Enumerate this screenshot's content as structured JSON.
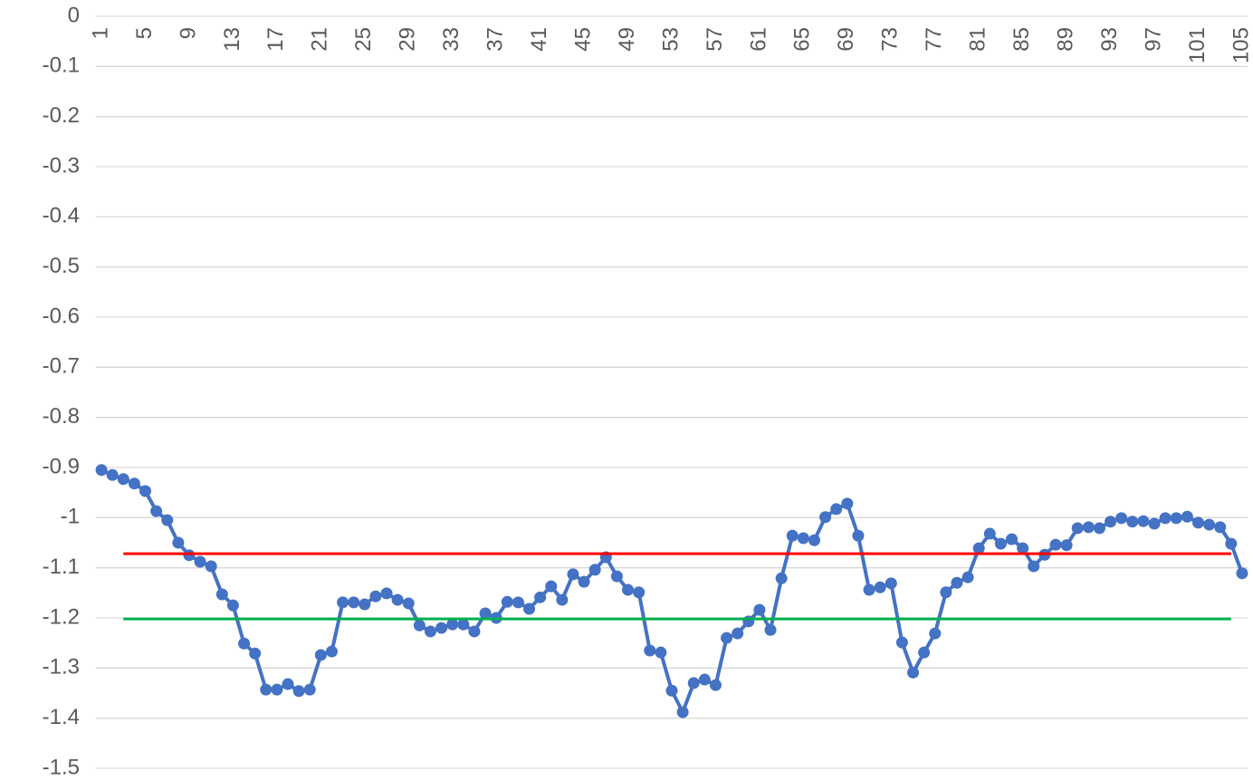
{
  "chart_data": {
    "type": "line",
    "categories": [
      1,
      null,
      null,
      null,
      5,
      null,
      null,
      null,
      9,
      null,
      null,
      null,
      13,
      null,
      null,
      null,
      17,
      null,
      null,
      null,
      21,
      null,
      null,
      null,
      25,
      null,
      null,
      null,
      29,
      null,
      null,
      null,
      33,
      null,
      null,
      null,
      37,
      null,
      null,
      null,
      41,
      null,
      null,
      null,
      45,
      null,
      null,
      null,
      49,
      null,
      null,
      null,
      53,
      null,
      null,
      null,
      57,
      null,
      null,
      null,
      61,
      null,
      null,
      null,
      65,
      null,
      null,
      null,
      69,
      null,
      null,
      null,
      73,
      null,
      null,
      null,
      77,
      null,
      null,
      null,
      81,
      null,
      null,
      null,
      85,
      null,
      null,
      null,
      89,
      null,
      null,
      null,
      93,
      null,
      null,
      null,
      97,
      null,
      null,
      null,
      101,
      null,
      null,
      null,
      105
    ],
    "series": [
      {
        "color": "#4472c4",
        "marker": true,
        "values": [
          -0.905,
          -0.915,
          -0.923,
          -0.932,
          -0.947,
          -0.987,
          -1.005,
          -1.05,
          -1.075,
          -1.088,
          -1.097,
          -1.153,
          -1.175,
          -1.251,
          -1.271,
          -1.343,
          -1.343,
          -1.332,
          -1.346,
          -1.343,
          -1.274,
          -1.267,
          -1.169,
          -1.169,
          -1.173,
          -1.157,
          -1.151,
          -1.164,
          -1.171,
          -1.215,
          -1.227,
          -1.22,
          -1.213,
          -1.213,
          -1.227,
          -1.191,
          -1.2,
          -1.168,
          -1.169,
          -1.182,
          -1.159,
          -1.137,
          -1.164,
          -1.113,
          -1.128,
          -1.104,
          -1.079,
          -1.117,
          -1.144,
          -1.149,
          -1.265,
          -1.269,
          -1.345,
          -1.388,
          -1.33,
          -1.323,
          -1.334,
          -1.24,
          -1.231,
          -1.207,
          -1.184,
          -1.224,
          -1.121,
          -1.036,
          -1.041,
          -1.045,
          -0.999,
          -0.983,
          -0.972,
          -1.036,
          -1.144,
          -1.139,
          -1.131,
          -1.249,
          -1.309,
          -1.269,
          -1.231,
          -1.149,
          -1.13,
          -1.119,
          -1.061,
          -1.032,
          -1.052,
          -1.043,
          -1.061,
          -1.097,
          -1.074,
          -1.054,
          -1.055,
          -1.021,
          -1.019,
          -1.021,
          -1.008,
          -1.001,
          -1.008,
          -1.007,
          -1.012,
          -1.001,
          -1.001,
          -0.998,
          -1.01,
          -1.014,
          -1.019,
          -1.052,
          -1.111
        ]
      },
      {
        "color": "#ff0000",
        "marker": false,
        "values": [
          null,
          null,
          -1.072,
          -1.072,
          -1.072,
          -1.072,
          -1.072,
          -1.072,
          -1.072,
          -1.072,
          -1.072,
          -1.072,
          -1.072,
          -1.072,
          -1.072,
          -1.072,
          -1.072,
          -1.072,
          -1.072,
          -1.072,
          -1.072,
          -1.072,
          -1.072,
          -1.072,
          -1.072,
          -1.072,
          -1.072,
          -1.072,
          -1.072,
          -1.072,
          -1.072,
          -1.072,
          -1.072,
          -1.072,
          -1.072,
          -1.072,
          -1.072,
          -1.072,
          -1.072,
          -1.072,
          -1.072,
          -1.072,
          -1.072,
          -1.072,
          -1.072,
          -1.072,
          -1.072,
          -1.072,
          -1.072,
          -1.072,
          -1.072,
          -1.072,
          -1.072,
          -1.072,
          -1.072,
          -1.072,
          -1.072,
          -1.072,
          -1.072,
          -1.072,
          -1.072,
          -1.072,
          -1.072,
          -1.072,
          -1.072,
          -1.072,
          -1.072,
          -1.072,
          -1.072,
          -1.072,
          -1.072,
          -1.072,
          -1.072,
          -1.072,
          -1.072,
          -1.072,
          -1.072,
          -1.072,
          -1.072,
          -1.072,
          -1.072,
          -1.072,
          -1.072,
          -1.072,
          -1.072,
          -1.072,
          -1.072,
          -1.072,
          -1.072,
          -1.072,
          -1.072,
          -1.072,
          -1.072,
          -1.072,
          -1.072,
          -1.072,
          -1.072,
          -1.072,
          -1.072,
          -1.072,
          -1.072,
          -1.072,
          -1.072,
          -1.072,
          null
        ]
      },
      {
        "color": "#00b050",
        "marker": false,
        "values": [
          null,
          null,
          -1.202,
          -1.202,
          -1.202,
          -1.202,
          -1.202,
          -1.202,
          -1.202,
          -1.202,
          -1.202,
          -1.202,
          -1.202,
          -1.202,
          -1.202,
          -1.202,
          -1.202,
          -1.202,
          -1.202,
          -1.202,
          -1.202,
          -1.202,
          -1.202,
          -1.202,
          -1.202,
          -1.202,
          -1.202,
          -1.202,
          -1.202,
          -1.202,
          -1.202,
          -1.202,
          -1.202,
          -1.202,
          -1.202,
          -1.202,
          -1.202,
          -1.202,
          -1.202,
          -1.202,
          -1.202,
          -1.202,
          -1.202,
          -1.202,
          -1.202,
          -1.202,
          -1.202,
          -1.202,
          -1.202,
          -1.202,
          -1.202,
          -1.202,
          -1.202,
          -1.202,
          -1.202,
          -1.202,
          -1.202,
          -1.202,
          -1.202,
          -1.202,
          -1.202,
          -1.202,
          -1.202,
          -1.202,
          -1.202,
          -1.202,
          -1.202,
          -1.202,
          -1.202,
          -1.202,
          -1.202,
          -1.202,
          -1.202,
          -1.202,
          -1.202,
          -1.202,
          -1.202,
          -1.202,
          -1.202,
          -1.202,
          -1.202,
          -1.202,
          -1.202,
          -1.202,
          -1.202,
          -1.202,
          -1.202,
          -1.202,
          -1.202,
          -1.202,
          -1.202,
          -1.202,
          -1.202,
          -1.202,
          -1.202,
          -1.202,
          -1.202,
          -1.202,
          -1.202,
          -1.202,
          -1.202,
          -1.202,
          -1.202,
          -1.202,
          null
        ]
      }
    ],
    "ylim": [
      -1.5,
      0
    ],
    "yticks": [
      0,
      -0.1,
      -0.2,
      -0.3,
      -0.4,
      -0.5,
      -0.6,
      -0.7,
      -0.8,
      -0.9,
      -1,
      -1.1,
      -1.2,
      -1.3,
      -1.4,
      -1.5
    ],
    "grid": true
  }
}
